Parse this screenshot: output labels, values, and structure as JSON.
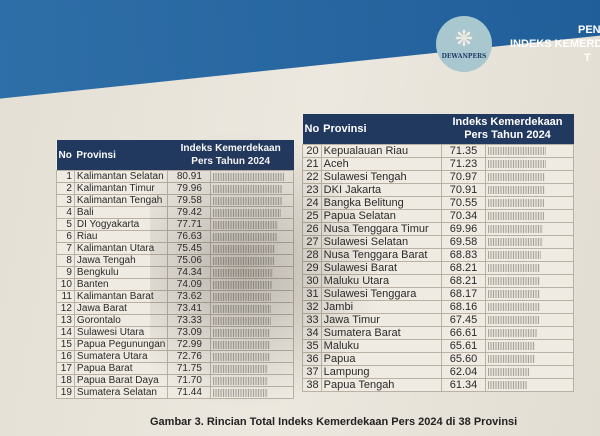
{
  "header": {
    "logo_text": "DEWANPERS",
    "line1": "PEN",
    "line2": "INDEKS KEMERDE",
    "line3": "T"
  },
  "table_headers": {
    "no": "No",
    "provinsi": "Provinsi",
    "index": "Indeks Kemerdekaan Pers Tahun 2024"
  },
  "rows": [
    [
      "1",
      "Kalimantan Selatan",
      "80.91"
    ],
    [
      "2",
      "Kalimantan Timur",
      "79.96"
    ],
    [
      "3",
      "Kalimantan Tengah",
      "79.58"
    ],
    [
      "4",
      "Bali",
      "79.42"
    ],
    [
      "5",
      "DI Yogyakarta",
      "77.71"
    ],
    [
      "6",
      "Riau",
      "76.63"
    ],
    [
      "7",
      "Kalimantan Utara",
      "75.45"
    ],
    [
      "8",
      "Jawa Tengah",
      "75.06"
    ],
    [
      "9",
      "Bengkulu",
      "74.34"
    ],
    [
      "10",
      "Banten",
      "74.09"
    ],
    [
      "11",
      "Kalimantan Barat",
      "73.62"
    ],
    [
      "12",
      "Jawa Barat",
      "73.41"
    ],
    [
      "13",
      "Gorontalo",
      "73.33"
    ],
    [
      "14",
      "Sulawesi Utara",
      "73.09"
    ],
    [
      "15",
      "Papua Pegunungan",
      "72.99"
    ],
    [
      "16",
      "Sumatera Utara",
      "72.76"
    ],
    [
      "17",
      "Papua Barat",
      "71.75"
    ],
    [
      "18",
      "Papua Barat Daya",
      "71.70"
    ],
    [
      "19",
      "Sumatera Selatan",
      "71.44"
    ],
    [
      "20",
      "Kepualauan Riau",
      "71.35"
    ],
    [
      "21",
      "Aceh",
      "71.23"
    ],
    [
      "22",
      "Sulawesi Tengah",
      "70.97"
    ],
    [
      "23",
      "DKI Jakarta",
      "70.91"
    ],
    [
      "24",
      "Bangka Belitung",
      "70.55"
    ],
    [
      "25",
      "Papua Selatan",
      "70.34"
    ],
    [
      "26",
      "Nusa Tenggara Timur",
      "69.96"
    ],
    [
      "27",
      "Sulawesi Selatan",
      "69.58"
    ],
    [
      "28",
      "Nusa Tenggara Barat",
      "68.83"
    ],
    [
      "29",
      "Sulawesi Barat",
      "68.21"
    ],
    [
      "30",
      "Maluku Utara",
      "68.21"
    ],
    [
      "31",
      "Sulawesi Tenggara",
      "68.17"
    ],
    [
      "32",
      "Jambi",
      "68.16"
    ],
    [
      "33",
      "Jawa Timur",
      "67.45"
    ],
    [
      "34",
      "Sumatera Barat",
      "66.61"
    ],
    [
      "35",
      "Maluku",
      "65.61"
    ],
    [
      "36",
      "Papua",
      "65.60"
    ],
    [
      "37",
      "Lampung",
      "62.04"
    ],
    [
      "38",
      "Papua Tengah",
      "61.34"
    ]
  ],
  "caption": "Gambar 3. Rincian Total Indeks Kemerdekaan Pers 2024 di 38 Provinsi"
}
